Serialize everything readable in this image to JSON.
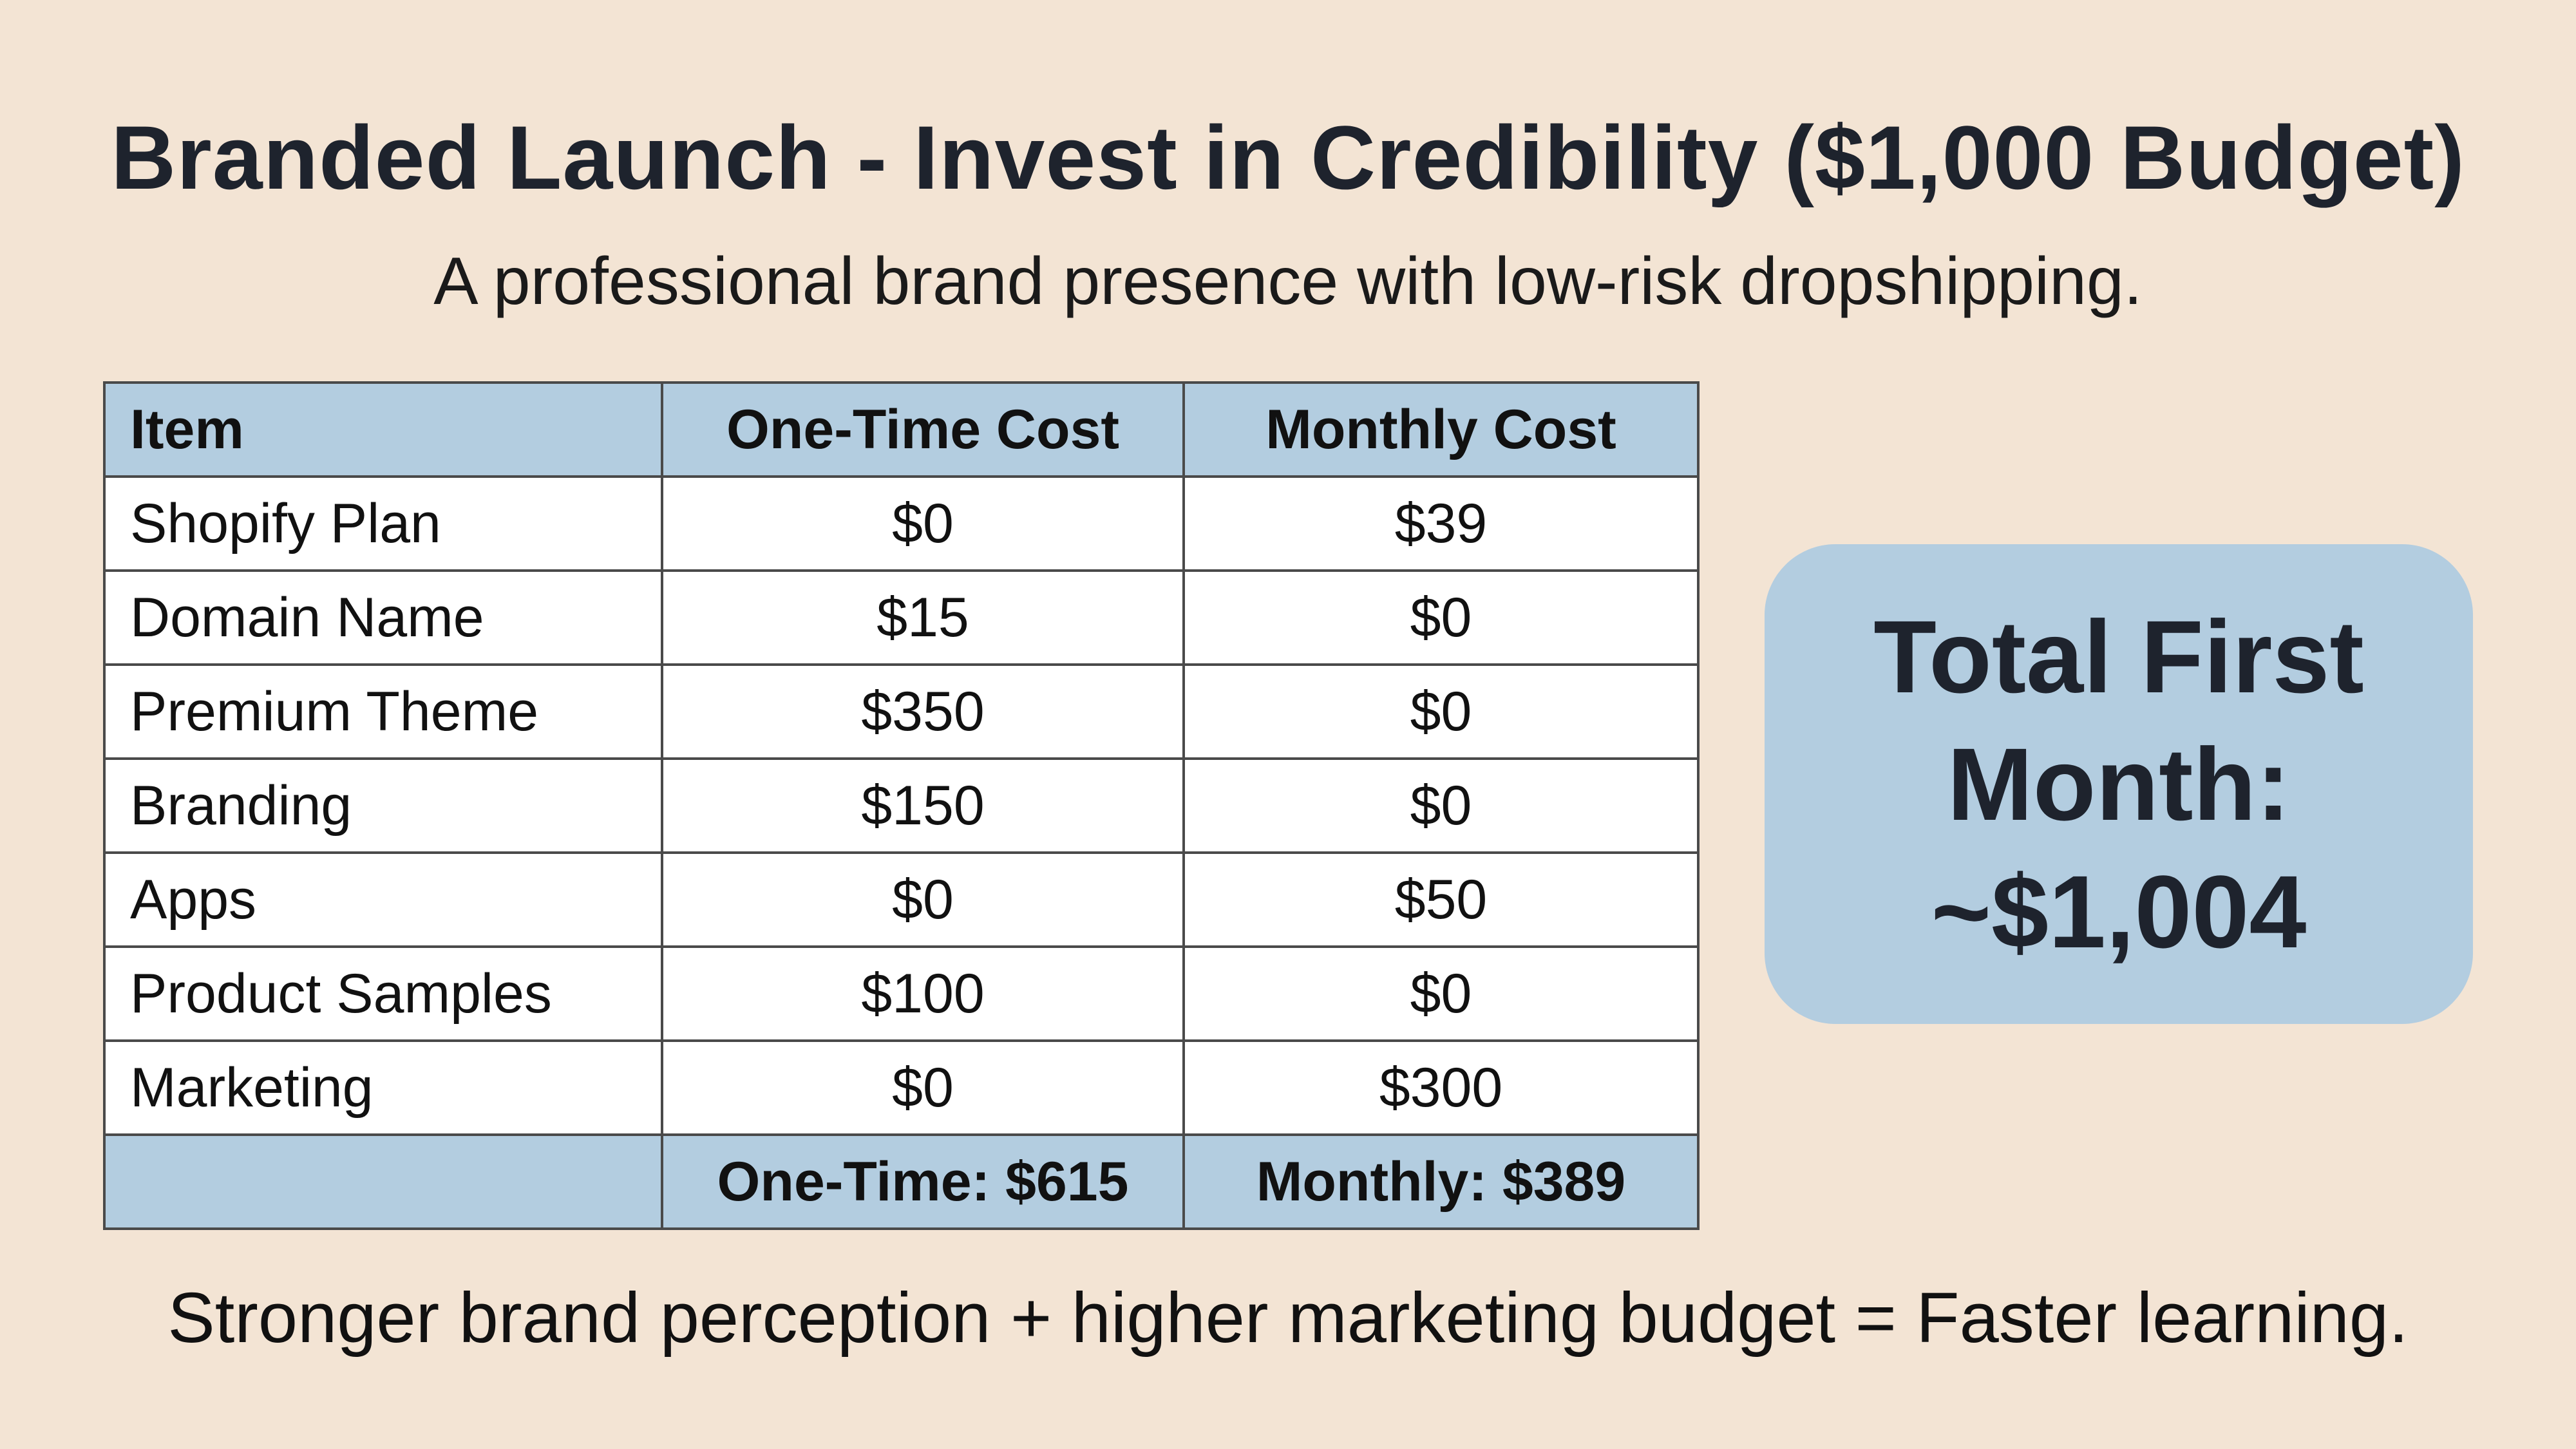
{
  "title": "Branded Launch - Invest in Credibility ($1,000 Budget)",
  "subtitle": "A professional brand presence with low-risk dropshipping.",
  "table": {
    "headers": [
      "Item",
      "One-Time Cost",
      "Monthly Cost"
    ],
    "rows": [
      {
        "item": "Shopify Plan",
        "one_time": "$0",
        "monthly": "$39"
      },
      {
        "item": "Domain Name",
        "one_time": "$15",
        "monthly": "$0"
      },
      {
        "item": "Premium Theme",
        "one_time": "$350",
        "monthly": "$0"
      },
      {
        "item": "Branding",
        "one_time": "$150",
        "monthly": "$0"
      },
      {
        "item": "Apps",
        "one_time": "$0",
        "monthly": "$50"
      },
      {
        "item": "Product Samples",
        "one_time": "$100",
        "monthly": "$0"
      },
      {
        "item": "Marketing",
        "one_time": "$0",
        "monthly": "$300"
      }
    ],
    "totals": {
      "label": "",
      "one_time": "One-Time: $615",
      "monthly": "Monthly: $389"
    }
  },
  "total_box": {
    "line1": "Total First",
    "line2": "Month:",
    "line3": "~$1,004"
  },
  "footer": "Stronger brand perception + higher marketing budget = Faster learning.",
  "colors": {
    "background": "#f3e4d4",
    "accent_blue": "#b3cde0",
    "title_text": "#1e232d"
  }
}
